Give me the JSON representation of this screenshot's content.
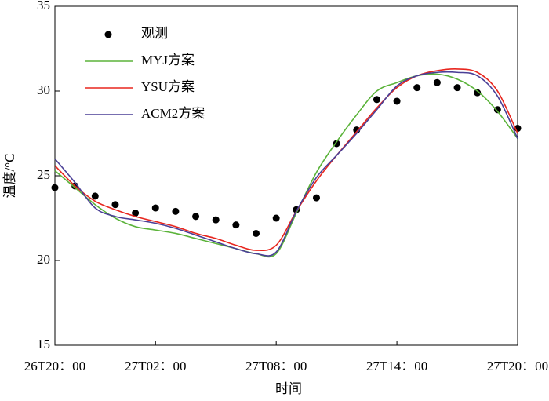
{
  "chart_data": {
    "type": "line",
    "xlabel": "时间",
    "ylabel": "温度/°C",
    "x": [
      0,
      1,
      2,
      3,
      4,
      5,
      6,
      7,
      8,
      9,
      10,
      11,
      12,
      13,
      14,
      15,
      16,
      17,
      18,
      19,
      20,
      21,
      22,
      23
    ],
    "xlim": [
      0,
      23
    ],
    "xticks": [
      {
        "value": 0,
        "label": "26T20：00"
      },
      {
        "value": 5,
        "label": "27T02：00"
      },
      {
        "value": 11,
        "label": "27T08：00"
      },
      {
        "value": 17,
        "label": "27T14：00"
      },
      {
        "value": 23,
        "label": "27T20：00"
      }
    ],
    "ylim": [
      15,
      35
    ],
    "yticks": [
      15,
      20,
      25,
      30,
      35
    ],
    "legend": "upper left",
    "series": [
      {
        "name": "观测",
        "color": "#000000",
        "marker": "dot",
        "values": [
          24.3,
          24.4,
          23.8,
          23.3,
          22.8,
          23.1,
          22.9,
          22.6,
          22.4,
          22.1,
          21.6,
          22.5,
          23.0,
          23.7,
          26.9,
          27.7,
          29.5,
          29.4,
          30.2,
          30.5,
          30.2,
          29.9,
          28.9,
          27.8
        ]
      },
      {
        "name": "MYJ方案",
        "color": "#5bb33a",
        "values": [
          25.3,
          24.3,
          23.3,
          22.5,
          22.0,
          21.8,
          21.6,
          21.3,
          21.0,
          20.7,
          20.4,
          20.4,
          22.8,
          25.2,
          27.0,
          28.6,
          30.0,
          30.5,
          30.9,
          31.0,
          30.7,
          30.0,
          28.8,
          27.2
        ]
      },
      {
        "name": "YSU方案",
        "color": "#e8261e",
        "values": [
          25.6,
          24.4,
          23.5,
          23.0,
          22.6,
          22.3,
          22.0,
          21.6,
          21.3,
          20.9,
          20.6,
          20.9,
          22.9,
          24.7,
          26.2,
          27.6,
          29.0,
          30.2,
          30.9,
          31.2,
          31.3,
          31.1,
          30.0,
          27.5
        ]
      },
      {
        "name": "ACM2方案",
        "color": "#4a3f96",
        "values": [
          26.0,
          24.6,
          23.1,
          22.6,
          22.4,
          22.2,
          21.9,
          21.5,
          21.1,
          20.7,
          20.4,
          20.5,
          22.9,
          24.9,
          26.2,
          27.5,
          28.9,
          30.3,
          30.9,
          31.1,
          31.1,
          30.9,
          29.7,
          27.2
        ]
      }
    ]
  }
}
